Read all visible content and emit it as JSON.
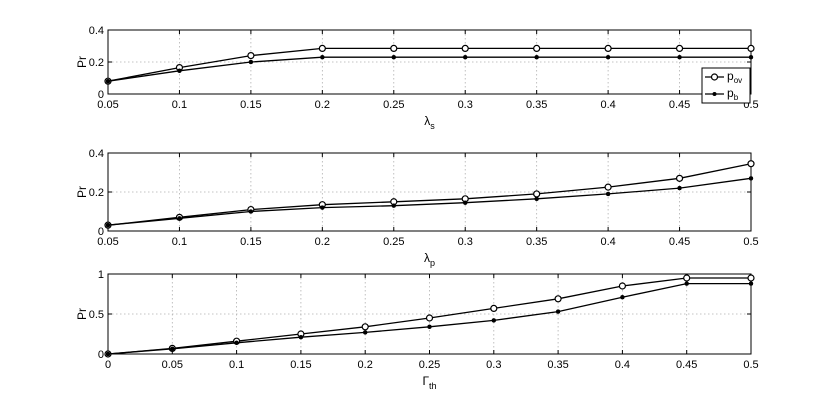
{
  "chart_data": [
    {
      "type": "line",
      "ylabel": "Pr",
      "xlabel_base": "λ",
      "xlabel_sub": "s",
      "x": [
        0.05,
        0.1,
        0.15,
        0.2,
        0.25,
        0.3,
        0.35,
        0.4,
        0.45,
        0.5
      ],
      "xticks": [
        "0.05",
        "0.1",
        "0.15",
        "0.2",
        "0.25",
        "0.3",
        "0.35",
        "0.4",
        "0.45",
        "0.5"
      ],
      "yticks": [
        "0",
        "0.2",
        "0.4"
      ],
      "xlim": [
        0.05,
        0.5
      ],
      "ylim": [
        0,
        0.4
      ],
      "grid": true,
      "legend": "right",
      "series": [
        {
          "name": "p_ov",
          "marker": "open-circle",
          "values": [
            0.08,
            0.165,
            0.24,
            0.285,
            0.285,
            0.285,
            0.285,
            0.285,
            0.285,
            0.285
          ]
        },
        {
          "name": "p_b",
          "marker": "filled-dot",
          "values": [
            0.08,
            0.145,
            0.2,
            0.23,
            0.23,
            0.23,
            0.23,
            0.23,
            0.23,
            0.23
          ]
        }
      ]
    },
    {
      "type": "line",
      "ylabel": "Pr",
      "xlabel_base": "λ",
      "xlabel_sub": "p",
      "x": [
        0.05,
        0.1,
        0.15,
        0.2,
        0.25,
        0.3,
        0.35,
        0.4,
        0.45,
        0.5
      ],
      "xticks": [
        "0.05",
        "0.1",
        "0.15",
        "0.2",
        "0.25",
        "0.3",
        "0.35",
        "0.4",
        "0.45",
        "0.5"
      ],
      "yticks": [
        "0",
        "0.2",
        "0.4"
      ],
      "xlim": [
        0.05,
        0.5
      ],
      "ylim": [
        0,
        0.4
      ],
      "grid": true,
      "series": [
        {
          "name": "p_ov",
          "marker": "open-circle",
          "values": [
            0.03,
            0.07,
            0.11,
            0.135,
            0.15,
            0.165,
            0.19,
            0.225,
            0.27,
            0.345
          ]
        },
        {
          "name": "p_b",
          "marker": "filled-dot",
          "values": [
            0.03,
            0.065,
            0.1,
            0.12,
            0.13,
            0.145,
            0.165,
            0.19,
            0.22,
            0.27
          ]
        }
      ]
    },
    {
      "type": "line",
      "ylabel": "Pr",
      "xlabel_base": "Γ",
      "xlabel_sub": "th",
      "x": [
        0,
        0.05,
        0.1,
        0.15,
        0.2,
        0.25,
        0.3,
        0.35,
        0.4,
        0.45,
        0.5
      ],
      "xticks": [
        "0",
        "0.05",
        "0.1",
        "0.15",
        "0.2",
        "0.25",
        "0.3",
        "0.35",
        "0.4",
        "0.45",
        "0.5"
      ],
      "yticks": [
        "0",
        "0.5",
        "1"
      ],
      "xlim": [
        0,
        0.5
      ],
      "ylim": [
        0,
        1
      ],
      "grid": true,
      "series": [
        {
          "name": "p_ov",
          "marker": "open-circle",
          "values": [
            0.0,
            0.07,
            0.16,
            0.25,
            0.34,
            0.45,
            0.57,
            0.69,
            0.85,
            0.95,
            0.95
          ]
        },
        {
          "name": "p_b",
          "marker": "filled-dot",
          "values": [
            0.0,
            0.065,
            0.14,
            0.21,
            0.27,
            0.34,
            0.42,
            0.53,
            0.71,
            0.88,
            0.88
          ]
        }
      ]
    }
  ],
  "legend": {
    "items": [
      {
        "base": "p",
        "sub": "ov",
        "marker": "open-circle"
      },
      {
        "base": "p",
        "sub": "b",
        "marker": "filled-dot"
      }
    ]
  }
}
